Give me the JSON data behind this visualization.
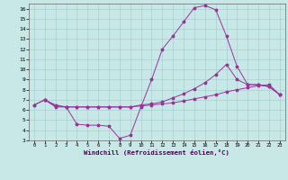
{
  "background_color": "#c8e8e8",
  "grid_color": "#a8d0d0",
  "line_color": "#993399",
  "xlabel": "Windchill (Refroidissement éolien,°C)",
  "xlim": [
    -0.5,
    23.5
  ],
  "ylim": [
    3,
    16.5
  ],
  "xticks": [
    0,
    1,
    2,
    3,
    4,
    5,
    6,
    7,
    8,
    9,
    10,
    11,
    12,
    13,
    14,
    15,
    16,
    17,
    18,
    19,
    20,
    21,
    22,
    23
  ],
  "yticks": [
    3,
    4,
    5,
    6,
    7,
    8,
    9,
    10,
    11,
    12,
    13,
    14,
    15,
    16
  ],
  "curve1_x": [
    1,
    2,
    3,
    4,
    5,
    6,
    7,
    8,
    9,
    10,
    11,
    12,
    13,
    14,
    15,
    16,
    17,
    18,
    19,
    20,
    21,
    22,
    23
  ],
  "curve1_y": [
    7.0,
    6.3,
    6.3,
    4.6,
    4.5,
    4.5,
    4.4,
    3.2,
    3.5,
    6.3,
    9.0,
    12.0,
    13.3,
    14.7,
    16.1,
    16.3,
    15.9,
    13.3,
    10.3,
    8.5,
    8.5,
    8.3,
    7.5
  ],
  "curve2_x": [
    0,
    1,
    2,
    3,
    4,
    5,
    6,
    7,
    8,
    9,
    10,
    11,
    12,
    13,
    14,
    15,
    16,
    17,
    18,
    19,
    20,
    21,
    22,
    23
  ],
  "curve2_y": [
    6.5,
    7.0,
    6.5,
    6.3,
    6.3,
    6.3,
    6.3,
    6.3,
    6.3,
    6.3,
    6.5,
    6.6,
    6.8,
    7.2,
    7.6,
    8.1,
    8.7,
    9.5,
    10.5,
    9.0,
    8.5,
    8.5,
    8.3,
    7.5
  ],
  "curve3_x": [
    0,
    1,
    2,
    3,
    4,
    5,
    6,
    7,
    8,
    9,
    10,
    11,
    12,
    13,
    14,
    15,
    16,
    17,
    18,
    19,
    20,
    21,
    22,
    23
  ],
  "curve3_y": [
    6.5,
    7.0,
    6.4,
    6.3,
    6.3,
    6.3,
    6.3,
    6.3,
    6.3,
    6.3,
    6.4,
    6.5,
    6.6,
    6.7,
    6.9,
    7.1,
    7.3,
    7.5,
    7.8,
    8.0,
    8.2,
    8.4,
    8.5,
    7.5
  ]
}
